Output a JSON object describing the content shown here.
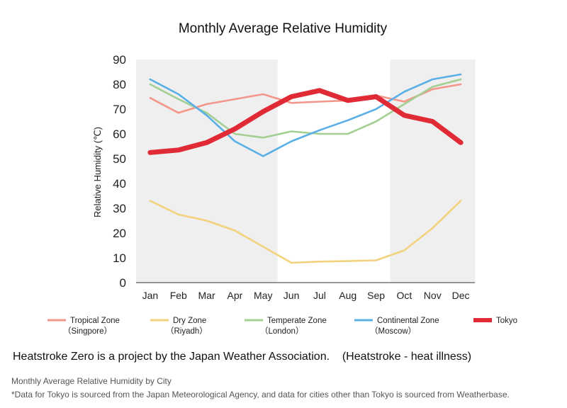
{
  "chart_data": {
    "type": "line",
    "title": "Monthly Average Relative Humidity",
    "ylabel": "Relative Humidity (℃)",
    "xlabel": "",
    "ylim": [
      0,
      90
    ],
    "yticks": [
      "0",
      "10",
      "20",
      "30",
      "40",
      "50",
      "60",
      "70",
      "80",
      "90"
    ],
    "categories": [
      "Jan",
      "Feb",
      "Mar",
      "Apr",
      "May",
      "Jun",
      "Jul",
      "Aug",
      "Sep",
      "Oct",
      "Nov",
      "Dec"
    ],
    "shaded_months": [
      "Jan",
      "Feb",
      "Mar",
      "Apr",
      "May",
      "Oct",
      "Nov",
      "Dec"
    ],
    "series": [
      {
        "name": "Tropical Zone",
        "sub": "（Singpore）",
        "color": "#F4978A",
        "width": "thin",
        "values": [
          74.5,
          68.5,
          72,
          74,
          76,
          72.5,
          73,
          73.5,
          75.5,
          73,
          78,
          80
        ]
      },
      {
        "name": "Dry Zone",
        "sub": "（Riyadh）",
        "color": "#F2D27C",
        "width": "thin",
        "values": [
          33,
          27.5,
          25,
          21,
          14.5,
          8,
          8.5,
          8.7,
          9,
          13,
          22,
          33
        ]
      },
      {
        "name": "Temperate Zone",
        "sub": "（London）",
        "color": "#A3CF93",
        "width": "thin",
        "values": [
          80,
          74,
          68.5,
          60,
          58.5,
          61,
          60,
          60,
          65,
          72,
          79,
          82
        ]
      },
      {
        "name": "Continental Zone",
        "sub": "（Moscow）",
        "color": "#5AB0E6",
        "width": "thin",
        "values": [
          82,
          76,
          67.5,
          57,
          51,
          57,
          61.5,
          65.5,
          70,
          77,
          82,
          84
        ]
      },
      {
        "name": "Tokyo",
        "sub": "",
        "color": "#E02B36",
        "width": "thick",
        "values": [
          52.5,
          53.5,
          56.5,
          62,
          69,
          75,
          77.5,
          73.5,
          75,
          67.5,
          65,
          56.5
        ]
      }
    ]
  },
  "caption": "Heatstroke Zero is a project by the Japan Weather Association.    (Heatstroke - heat illness)",
  "footer": {
    "line1": "Monthly Average Relative Humidity by City",
    "line2": "*Data for Tokyo is sourced from the Japan Meteorological Agency, and data for cities other than Tokyo is sourced from Weatherbase."
  }
}
